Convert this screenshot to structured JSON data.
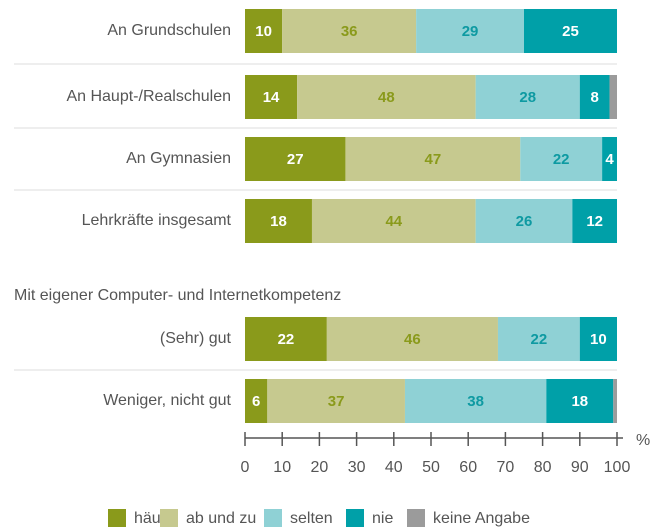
{
  "chart_data": {
    "type": "stacked-bar-horizontal",
    "group_label": "Mit eigener Computer- und Internetkompetenz",
    "categories": [
      "An Grundschulen",
      "An Haupt-/Realschulen",
      "An Gymnasien",
      "Lehrkräfte insgesamt",
      "(Sehr) gut",
      "Weniger, nicht gut"
    ],
    "series": [
      {
        "name": "häufig",
        "color": "#8a9a1b",
        "label_color": "#ffffff",
        "labels": true,
        "values": [
          10,
          14,
          27,
          18,
          22,
          6
        ]
      },
      {
        "name": "ab und zu",
        "color": "#c6c98f",
        "label_color": "#8a9a1b",
        "labels": true,
        "values": [
          36,
          48,
          47,
          44,
          46,
          37
        ]
      },
      {
        "name": "selten",
        "color": "#8fd1d5",
        "label_color": "#0e9aa2",
        "labels": true,
        "values": [
          29,
          28,
          22,
          26,
          22,
          38
        ]
      },
      {
        "name": "nie",
        "color": "#00a0a8",
        "label_color": "#ffffff",
        "labels": true,
        "values": [
          25,
          8,
          4,
          12,
          10,
          18
        ]
      },
      {
        "name": "keine Angabe",
        "color": "#9b9b9b",
        "label_color": "#ffffff",
        "labels": false,
        "values": [
          0,
          2,
          0,
          0,
          0,
          1
        ]
      }
    ],
    "xlabel": "%",
    "xlim": [
      0,
      100
    ],
    "xticks": [
      0,
      10,
      20,
      30,
      40,
      50,
      60,
      70,
      80,
      90,
      100
    ]
  }
}
